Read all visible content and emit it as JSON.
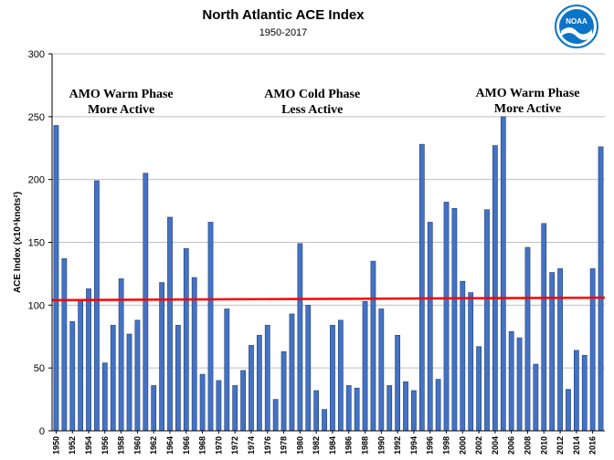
{
  "header": {
    "title": "North Atlantic ACE Index",
    "subtitle": "1950-2017",
    "logo_text": "NOAA"
  },
  "colors": {
    "bar_fill": "#4472c4",
    "bar_stroke": "#1f3f7a",
    "trend_line": "#ff0000",
    "grid": "#bfbfbf",
    "logo_blue": "#0a74c9"
  },
  "chart_data": {
    "type": "bar",
    "title": "North Atlantic ACE Index",
    "subtitle": "1950-2017",
    "xlabel": "",
    "ylabel": "ACE Index (x10⁴knots²)",
    "ylim": [
      0,
      300
    ],
    "yticks": [
      0,
      50,
      100,
      150,
      200,
      250,
      300
    ],
    "grid": true,
    "legend": "none",
    "xtick_labels": [
      "1950",
      "1952",
      "1954",
      "1956",
      "1958",
      "1960",
      "1962",
      "1964",
      "1966",
      "1968",
      "1970",
      "1972",
      "1974",
      "1976",
      "1978",
      "1980",
      "1982",
      "1984",
      "1986",
      "1988",
      "1990",
      "1992",
      "1994",
      "1996",
      "1998",
      "2000",
      "2002",
      "2004",
      "2006",
      "2008",
      "2010",
      "2012",
      "2014",
      "2016"
    ],
    "categories": [
      "1950",
      "1951",
      "1952",
      "1953",
      "1954",
      "1955",
      "1956",
      "1957",
      "1958",
      "1959",
      "1960",
      "1961",
      "1962",
      "1963",
      "1964",
      "1965",
      "1966",
      "1967",
      "1968",
      "1969",
      "1970",
      "1971",
      "1972",
      "1973",
      "1974",
      "1975",
      "1976",
      "1977",
      "1978",
      "1979",
      "1980",
      "1981",
      "1982",
      "1983",
      "1984",
      "1985",
      "1986",
      "1987",
      "1988",
      "1989",
      "1990",
      "1991",
      "1992",
      "1993",
      "1994",
      "1995",
      "1996",
      "1997",
      "1998",
      "1999",
      "2000",
      "2001",
      "2002",
      "2003",
      "2004",
      "2005",
      "2006",
      "2007",
      "2008",
      "2009",
      "2010",
      "2011",
      "2012",
      "2013",
      "2014",
      "2015",
      "2016",
      "2017"
    ],
    "values": [
      243,
      137,
      87,
      104,
      113,
      199,
      54,
      84,
      121,
      77,
      88,
      205,
      36,
      118,
      170,
      84,
      145,
      122,
      45,
      166,
      40,
      97,
      36,
      48,
      68,
      76,
      84,
      25,
      63,
      93,
      149,
      100,
      32,
      17,
      84,
      88,
      36,
      34,
      103,
      135,
      97,
      36,
      76,
      39,
      32,
      228,
      166,
      41,
      182,
      177,
      119,
      110,
      67,
      176,
      227,
      250,
      79,
      74,
      146,
      53,
      165,
      126,
      129,
      33,
      64,
      60,
      129,
      226
    ],
    "trend": {
      "start": 104,
      "end": 106
    },
    "annotations": [
      {
        "line1": "AMO Warm Phase",
        "line2": "More Active",
        "x_year": 1958,
        "y": 265
      },
      {
        "line1": "AMO Cold Phase",
        "line2": "Less Active",
        "x_year": 1981.5,
        "y": 265
      },
      {
        "line1": "AMO Warm Phase",
        "line2": "More Active",
        "x_year": 2008,
        "y": 266
      }
    ]
  }
}
